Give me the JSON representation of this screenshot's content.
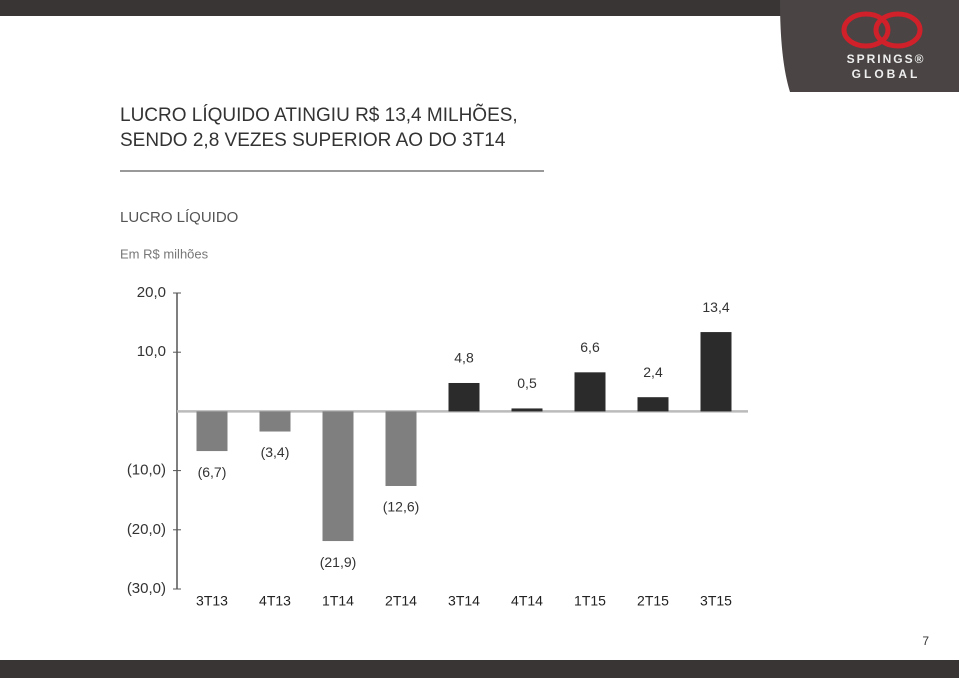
{
  "header": {
    "title_lines": [
      "LUCRO LÍQUIDO ATINGIU R$ 13,4 MILHÕES,",
      "SENDO 2,8 VEZES SUPERIOR AO DO 3T14"
    ],
    "logo_lines": [
      "SPRINGS®",
      "GLOBAL"
    ]
  },
  "page_number": "7",
  "chart_data": {
    "type": "bar",
    "title": "LUCRO LÍQUIDO",
    "subtitle": "Em R$ milhões",
    "categories": [
      "3T13",
      "4T13",
      "1T14",
      "2T14",
      "3T14",
      "4T14",
      "1T15",
      "2T15",
      "3T15"
    ],
    "values": [
      -6.7,
      -3.4,
      -21.9,
      -12.6,
      4.8,
      0.5,
      6.6,
      2.4,
      13.4
    ],
    "value_labels": [
      "(6,7)",
      "(3,4)",
      "(21,9)",
      "(12,6)",
      "4,8",
      "0,5",
      "6,6",
      "2,4",
      "13,4"
    ],
    "positive_color": "#2b2b2b",
    "negative_color": "#7f7f7f",
    "ylim": [
      -30,
      20
    ],
    "yticks": [
      {
        "value": 20,
        "label": "20,0"
      },
      {
        "value": 10,
        "label": "10,0"
      },
      {
        "value": -10,
        "label": "(10,0)"
      },
      {
        "value": -20,
        "label": "(20,0)"
      },
      {
        "value": -30,
        "label": "(30,0)"
      }
    ],
    "grid": false
  }
}
